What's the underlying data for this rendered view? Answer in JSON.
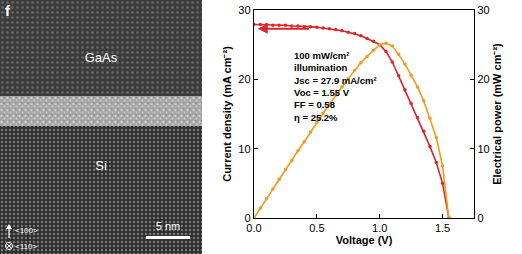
{
  "panel_label": "f",
  "tem_image": {
    "layers": [
      "GaAs",
      "Si"
    ],
    "scale_bar": "5 nm",
    "directions": [
      "<100>",
      "<110>"
    ]
  },
  "chart_data": {
    "type": "line",
    "xlabel": "Voltage (V)",
    "ylabel": "Current density (mA cm⁻²)",
    "y2label": "Electrical power (mW cm⁻²)",
    "x": [
      0,
      0.05,
      0.1,
      0.15,
      0.2,
      0.25,
      0.3,
      0.35,
      0.4,
      0.45,
      0.5,
      0.55,
      0.6,
      0.65,
      0.7,
      0.75,
      0.8,
      0.85,
      0.9,
      0.95,
      1.0,
      1.05,
      1.1,
      1.15,
      1.2,
      1.25,
      1.3,
      1.35,
      1.4,
      1.45,
      1.5,
      1.55
    ],
    "series": [
      {
        "color": "#d8262b",
        "marker": "circle",
        "values": [
          27.9,
          27.9,
          27.9,
          27.8,
          27.8,
          27.8,
          27.7,
          27.7,
          27.6,
          27.6,
          27.5,
          27.4,
          27.3,
          27.2,
          27.0,
          26.8,
          26.6,
          26.3,
          25.9,
          25.5,
          25.0,
          24.0,
          22.5,
          20.5,
          18.5,
          16.5,
          14.5,
          12.5,
          10.3,
          8.0,
          5.0,
          0
        ]
      },
      {
        "color": "#f39a21",
        "marker": "circle",
        "axis": "y2",
        "values": [
          0,
          1.4,
          2.8,
          4.2,
          5.6,
          7.0,
          8.3,
          9.7,
          11.0,
          12.4,
          13.8,
          15.1,
          16.4,
          17.7,
          18.9,
          20.1,
          21.3,
          22.4,
          23.3,
          24.2,
          25.0,
          25.2,
          24.8,
          23.6,
          22.2,
          20.6,
          18.9,
          16.9,
          14.4,
          11.6,
          7.5,
          0
        ]
      }
    ],
    "xlim": [
      0,
      1.75
    ],
    "xticks": [
      {
        "value": 0,
        "label": "0.0"
      },
      {
        "value": 0.5,
        "label": "0.5"
      },
      {
        "value": 1,
        "label": "1.0"
      },
      {
        "value": 1.5,
        "label": "1.5"
      }
    ],
    "ylim": [
      0,
      30
    ],
    "yticks": [
      0,
      10,
      20,
      30
    ],
    "y2lim": [
      0,
      30
    ],
    "y2ticks": [
      0,
      10,
      20,
      30
    ],
    "annotations": [
      "100 mW/cm²",
      "illumination",
      "Jsc = 27.9 mA/cm²",
      "Voc = 1.55 V",
      "FF = 0.58",
      "η = 25.2%"
    ],
    "grid": false
  }
}
